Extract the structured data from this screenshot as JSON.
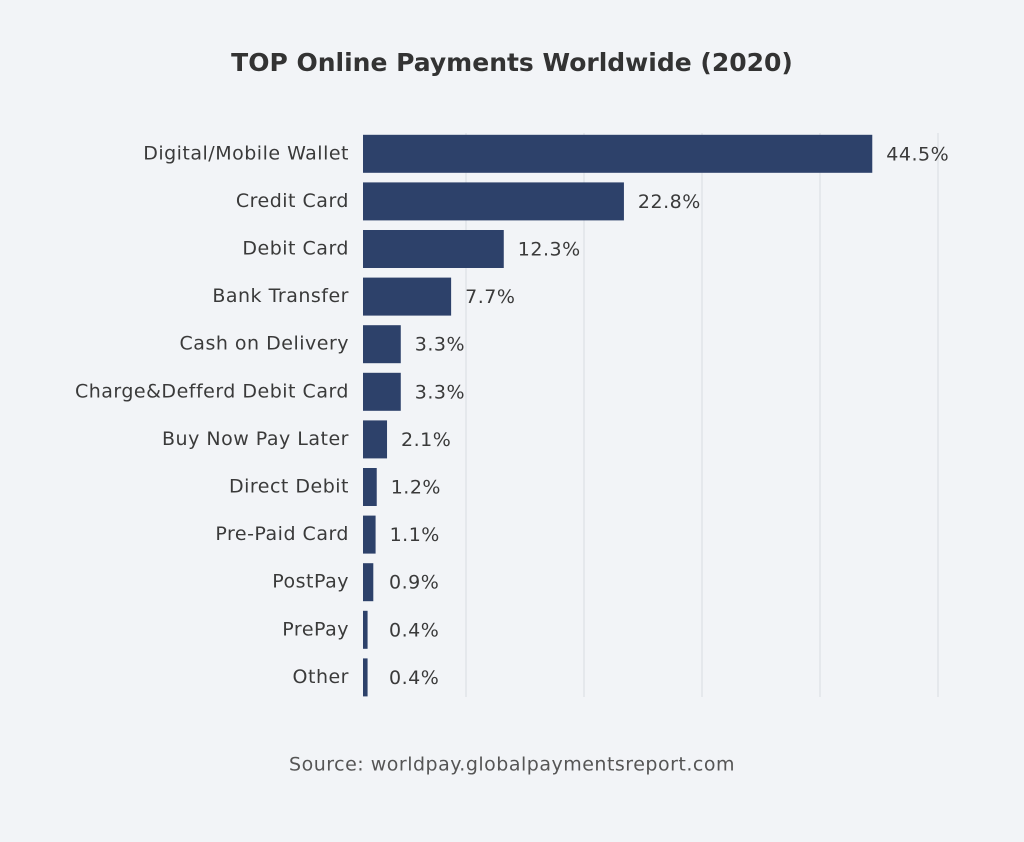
{
  "chart_data": {
    "type": "bar",
    "orientation": "horizontal",
    "title": "TOP Online Payments Worldwide (2020)",
    "source": "Source: worldpay.globalpaymentsreport.com",
    "categories": [
      "Digital/Mobile Wallet",
      "Credit Card",
      "Debit Card",
      "Bank Transfer",
      "Cash on Delivery",
      "Charge&Defferd Debit Card",
      "Buy Now Pay Later",
      "Direct Debit",
      "Pre-Paid Card",
      "PostPay",
      "PrePay",
      "Other"
    ],
    "values": [
      44.5,
      22.8,
      12.3,
      7.7,
      3.3,
      3.3,
      2.1,
      1.2,
      1.1,
      0.9,
      0.4,
      0.4
    ],
    "value_labels": [
      "44.5%",
      "22.8%",
      "12.3%",
      "7.7%",
      "3.3%",
      "3.3%",
      "2.1%",
      "1.2%",
      "1.1%",
      "0.9%",
      "0.4%",
      "0.4%"
    ],
    "color": "#2d416a",
    "xlim": [
      0,
      45
    ]
  }
}
